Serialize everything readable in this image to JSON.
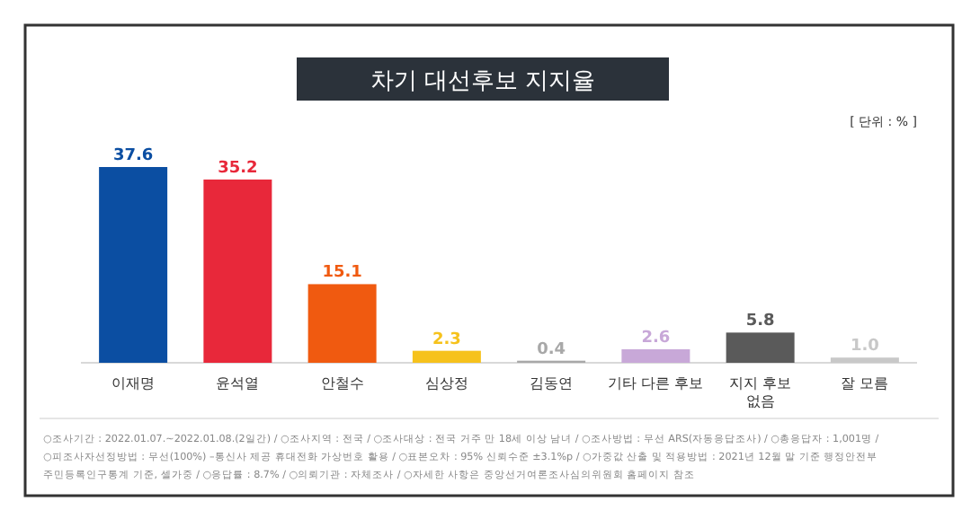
{
  "chart_data": {
    "type": "bar",
    "title": "차기 대선후보 지지율",
    "subtitle": "[ 단위 : % ]",
    "categories": [
      "이재명",
      "윤석열",
      "안철수",
      "심상정",
      "김동연",
      "기타 다른 후보",
      "지지 후보\n없음",
      "잘 모름"
    ],
    "values": [
      37.6,
      35.2,
      15.1,
      2.3,
      0.4,
      2.6,
      5.8,
      1.0
    ],
    "colors": [
      "#0b4ea2",
      "#e8283a",
      "#f05a10",
      "#f6c21c",
      "#a8a8a8",
      "#c8a8d8",
      "#5a5a5a",
      "#c8c8c8"
    ],
    "value_labels": [
      "37.6",
      "35.2",
      "15.1",
      "2.3",
      "0.4",
      "2.6",
      "5.8",
      "1.0"
    ],
    "annotations": [
      "○조사기간 : 2022.01.07.~2022.01.08.(2일간) / ○조사지역 : 전국 / ○조사대상 : 전국 거주 만 18세 이상 남녀 / ○조사방법 : 무선 ARS(자동응답조사) / ○총응답자 : 1,001명 /",
      "○피조사자선정방법 : 무선(100%) –통신사 제공 휴대전화 가상번호 활용 / ○표본오차 : 95% 신뢰수준 ±3.1%p / ○가중값 산출 및 적용방법 : 2021년 12월 말 기준 행정안전부",
      "주민등록인구통계 기준, 셀가중 / ○응답률 : 8.7% / ○의뢰기관 : 자체조사 / ○자세한 사항은 중앙선거여론조사심의위원회 홈페이지 참조"
    ]
  }
}
